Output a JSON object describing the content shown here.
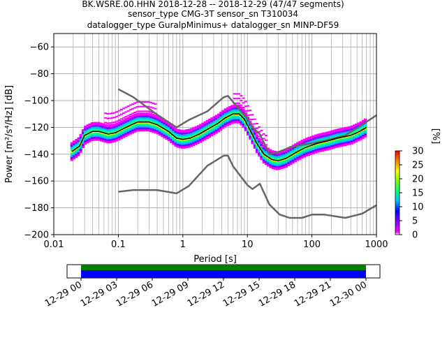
{
  "title_lines": [
    "BK.WSRE.00.HHN   2018-12-28 -- 2018-12-29  (47/47 segments)",
    "sensor_type CMG-3T sensor_sn T310034",
    "datalogger_type GuralpMinimus+ datalogger_sn MINP-DF59"
  ],
  "colors": {
    "nhnm_nlnm": "#666666",
    "mode": "#000000",
    "coverage_top": "#008000",
    "coverage_bottom": "#0000ff",
    "grid": "#b0b0b0"
  },
  "chart_data": {
    "type": "heatmap",
    "xlabel": "Period [s]",
    "ylabel": "Power [m²/s⁴/Hz] [dB]",
    "xscale": "log",
    "xlim": [
      0.01,
      1000
    ],
    "ylim": [
      -200,
      -50
    ],
    "x_tick_labels": [
      "0.01",
      "0.1",
      "1",
      "10",
      "100",
      "1000"
    ],
    "x_tick_values": [
      0.01,
      0.1,
      1,
      10,
      100,
      1000
    ],
    "y_tick_values": [
      -60,
      -80,
      -100,
      -120,
      -140,
      -160,
      -180,
      -200
    ],
    "y_tick_labels": [
      "−60",
      "−80",
      "−100",
      "−120",
      "−140",
      "−160",
      "−180",
      "−200"
    ],
    "grid": true,
    "colorbar": {
      "label": "[%]",
      "range": [
        0,
        30
      ],
      "ticks": [
        0,
        5,
        10,
        15,
        20,
        25,
        30
      ]
    },
    "mode_curve": [
      [
        0.019,
        -138
      ],
      [
        0.025,
        -134
      ],
      [
        0.03,
        -126
      ],
      [
        0.04,
        -123
      ],
      [
        0.05,
        -123
      ],
      [
        0.07,
        -125
      ],
      [
        0.09,
        -124
      ],
      [
        0.12,
        -121
      ],
      [
        0.16,
        -118
      ],
      [
        0.2,
        -116
      ],
      [
        0.3,
        -116
      ],
      [
        0.4,
        -118
      ],
      [
        0.6,
        -123
      ],
      [
        0.8,
        -128
      ],
      [
        1.0,
        -129
      ],
      [
        1.3,
        -128
      ],
      [
        1.8,
        -125
      ],
      [
        2.5,
        -121
      ],
      [
        3.5,
        -117
      ],
      [
        4.5,
        -113
      ],
      [
        6.0,
        -110
      ],
      [
        7.5,
        -110
      ],
      [
        9.0,
        -114
      ],
      [
        11,
        -122
      ],
      [
        14,
        -132
      ],
      [
        18,
        -140
      ],
      [
        24,
        -144
      ],
      [
        30,
        -145
      ],
      [
        40,
        -143
      ],
      [
        60,
        -138
      ],
      [
        80,
        -135
      ],
      [
        120,
        -132
      ],
      [
        180,
        -130
      ],
      [
        250,
        -128
      ],
      [
        400,
        -126
      ],
      [
        550,
        -123
      ],
      [
        700,
        -120
      ]
    ],
    "nhnm": [
      [
        0.1,
        -91.5
      ],
      [
        0.17,
        -97.4
      ],
      [
        0.4,
        -110.5
      ],
      [
        0.8,
        -120
      ],
      [
        1.24,
        -114.5
      ],
      [
        2.4,
        -108
      ],
      [
        4.3,
        -97.5
      ],
      [
        5.0,
        -96.5
      ],
      [
        6.0,
        -101
      ],
      [
        10,
        -113.5
      ],
      [
        12,
        -120
      ],
      [
        15.6,
        -125
      ],
      [
        21.9,
        -140
      ],
      [
        31.6,
        -138
      ],
      [
        45,
        -135
      ],
      [
        70,
        -133
      ],
      [
        101,
        -132
      ],
      [
        154,
        -130
      ],
      [
        328,
        -126
      ],
      [
        600,
        -118
      ],
      [
        1000,
        -111
      ]
    ],
    "nlnm": [
      [
        0.1,
        -168
      ],
      [
        0.17,
        -166.7
      ],
      [
        0.4,
        -166.7
      ],
      [
        0.8,
        -169.2
      ],
      [
        1.24,
        -163.7
      ],
      [
        2.4,
        -148.6
      ],
      [
        4.3,
        -141.1
      ],
      [
        5.0,
        -141.1
      ],
      [
        6.0,
        -149
      ],
      [
        10,
        -163
      ],
      [
        12,
        -166
      ],
      [
        15.6,
        -162
      ],
      [
        21.9,
        -177.5
      ],
      [
        31.6,
        -185
      ],
      [
        45,
        -187.5
      ],
      [
        70,
        -187.5
      ],
      [
        101,
        -185
      ],
      [
        154,
        -185
      ],
      [
        328,
        -187.5
      ],
      [
        600,
        -184.4
      ],
      [
        1000,
        -178
      ]
    ],
    "coverage": {
      "tick_labels": [
        "12-29 00",
        "12-29 03",
        "12-29 06",
        "12-29 09",
        "12-29 12",
        "12-29 15",
        "12-29 18",
        "12-29 21",
        "12-30 00"
      ]
    }
  }
}
